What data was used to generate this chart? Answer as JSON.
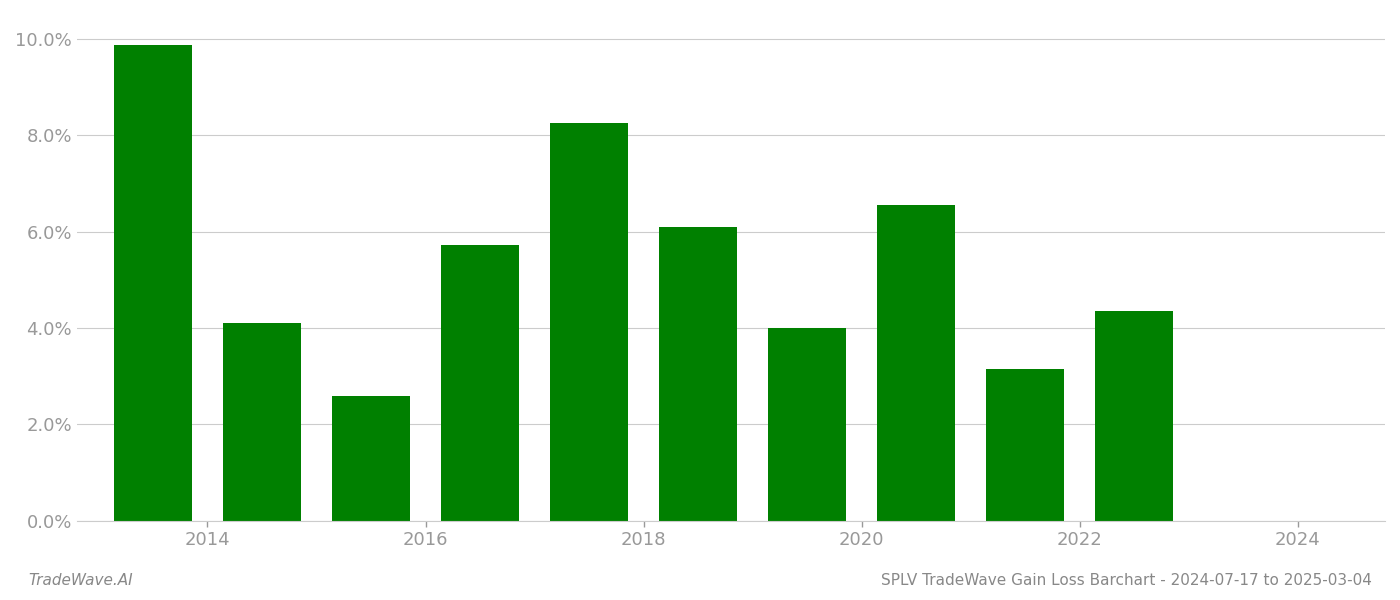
{
  "bar_positions": [
    2013.5,
    2014.5,
    2015.5,
    2016.5,
    2017.5,
    2018.5,
    2019.5,
    2020.5,
    2021.5,
    2022.5,
    2023.5
  ],
  "values": [
    0.0988,
    0.041,
    0.0258,
    0.0572,
    0.0825,
    0.061,
    0.04,
    0.0655,
    0.0315,
    0.0435,
    0.0
  ],
  "bar_color": "#008000",
  "background_color": "#ffffff",
  "footer_left": "TradeWave.AI",
  "footer_right": "SPLV TradeWave Gain Loss Barchart - 2024-07-17 to 2025-03-04",
  "ylim_min": 0.0,
  "ylim_max": 0.105,
  "ytick_values": [
    0.0,
    0.02,
    0.04,
    0.06,
    0.08,
    0.1
  ],
  "ytick_labels": [
    "0.0%",
    "2.0%",
    "4.0%",
    "6.0%",
    "8.0%",
    "10.0%"
  ],
  "xtick_positions": [
    2014,
    2016,
    2018,
    2020,
    2022,
    2024
  ],
  "xtick_labels": [
    "2014",
    "2016",
    "2018",
    "2020",
    "2022",
    "2024"
  ],
  "xlim_min": 2012.8,
  "xlim_max": 2024.8,
  "bar_width": 0.72,
  "grid_color": "#cccccc",
  "tick_color": "#999999",
  "font_color": "#888888",
  "font_size_ticks": 13,
  "font_size_footer": 11
}
